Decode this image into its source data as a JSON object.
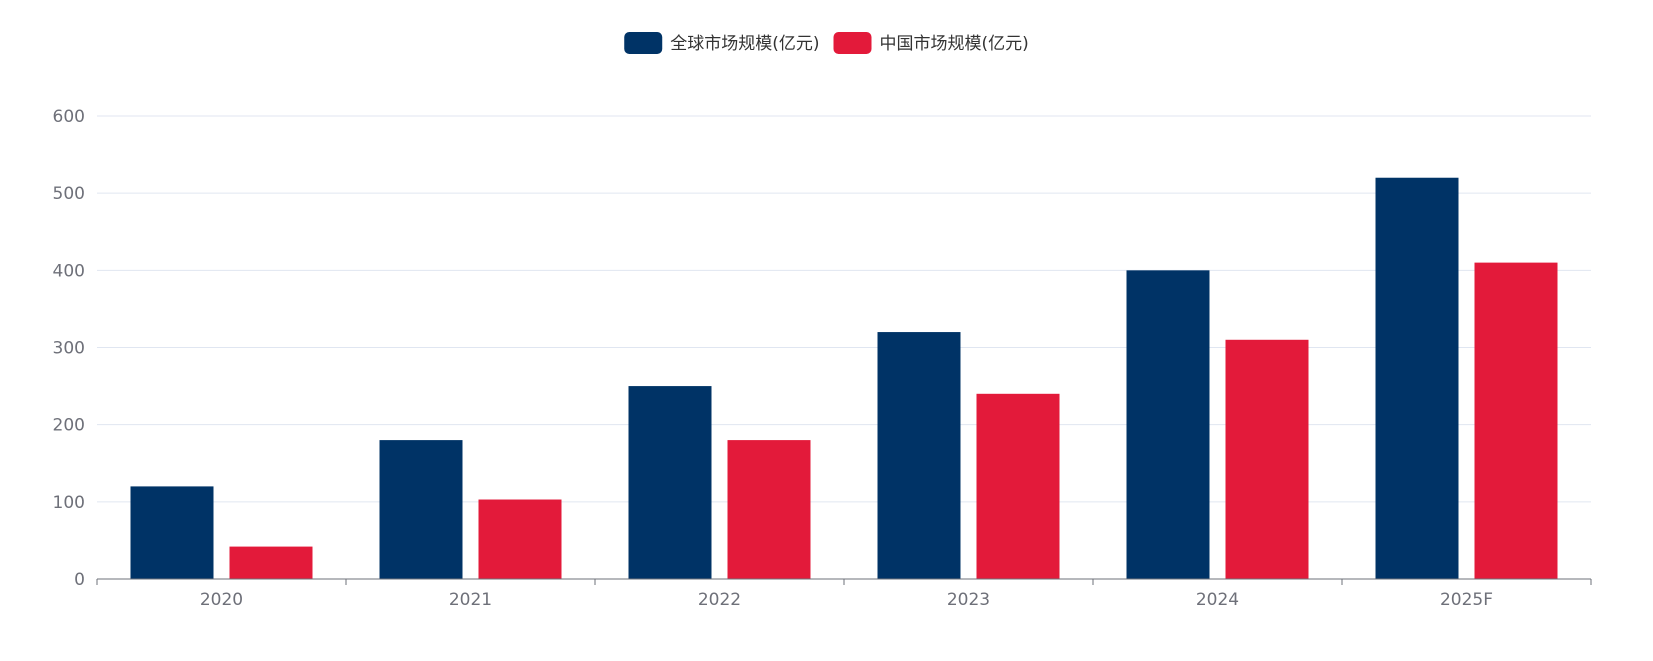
{
  "chart_data": {
    "type": "bar",
    "categories": [
      "2020",
      "2021",
      "2022",
      "2023",
      "2024",
      "2025F"
    ],
    "series": [
      {
        "name": "全球市场规模(亿元)",
        "values": [
          120,
          180,
          250,
          320,
          400,
          520
        ],
        "color": "#003366"
      },
      {
        "name": "中国市场规模(亿元)",
        "values": [
          42,
          103,
          180,
          240,
          310,
          410
        ],
        "color": "#e31a3a"
      }
    ],
    "ylim": [
      0,
      600
    ],
    "yticks": [
      0,
      100,
      200,
      300,
      400,
      500,
      600
    ],
    "grid": true,
    "legend_position": "top-center",
    "axis_color": "#6e7079",
    "grid_color": "#e0e6f1"
  }
}
